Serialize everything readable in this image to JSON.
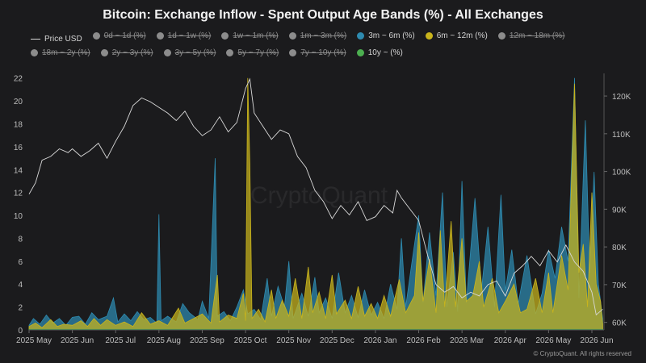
{
  "title": "Bitcoin: Exchange Inflow - Spent Output Age Bands (%) - All Exchanges",
  "legend": [
    {
      "label": "Price USD",
      "color": "#d8d8d8",
      "kind": "line",
      "active": true
    },
    {
      "label": "0d ~ 1d (%)",
      "color": "#8c8c8c",
      "kind": "dot",
      "active": false
    },
    {
      "label": "1d ~ 1w (%)",
      "color": "#8c8c8c",
      "kind": "dot",
      "active": false
    },
    {
      "label": "1w ~ 1m (%)",
      "color": "#8c8c8c",
      "kind": "dot",
      "active": false
    },
    {
      "label": "1m ~ 3m (%)",
      "color": "#8c8c8c",
      "kind": "dot",
      "active": false
    },
    {
      "label": "3m ~ 6m (%)",
      "color": "#2e8bb0",
      "kind": "dot",
      "active": true
    },
    {
      "label": "6m ~ 12m (%)",
      "color": "#c9b41c",
      "kind": "dot",
      "active": true
    },
    {
      "label": "12m ~ 18m (%)",
      "color": "#8c8c8c",
      "kind": "dot",
      "active": false
    },
    {
      "label": "18m ~ 2y (%)",
      "color": "#8c8c8c",
      "kind": "dot",
      "active": false
    },
    {
      "label": "2y ~ 3y (%)",
      "color": "#8c8c8c",
      "kind": "dot",
      "active": false
    },
    {
      "label": "3y ~ 5y (%)",
      "color": "#8c8c8c",
      "kind": "dot",
      "active": false
    },
    {
      "label": "5y ~ 7y (%)",
      "color": "#8c8c8c",
      "kind": "dot",
      "active": false
    },
    {
      "label": "7y ~ 10y (%)",
      "color": "#8c8c8c",
      "kind": "dot",
      "active": false
    },
    {
      "label": "10y ~ (%)",
      "color": "#4caf50",
      "kind": "dot",
      "active": true
    }
  ],
  "watermark": "CryptoQuant",
  "copyright": "© CryptoQuant. All rights reserved",
  "chart_data": {
    "type": "area",
    "title": "Bitcoin: Exchange Inflow - Spent Output Age Bands (%) - All Exchanges",
    "x_tick_labels": [
      "2025 May",
      "2025 Jun",
      "2025 Jul",
      "2025 Aug",
      "2025 Sep",
      "2025 Oct",
      "2025 Nov",
      "2025 Dec",
      "2026 Jan",
      "2026 Feb",
      "2026 Mar",
      "2026 Apr",
      "2026 May",
      "2026 Jun"
    ],
    "x_tick_positions": [
      0,
      1,
      2,
      3,
      4,
      5,
      6,
      7,
      8,
      9,
      10,
      11,
      12,
      13
    ],
    "x_range": [
      0,
      13.0
    ],
    "ylim_left": [
      0,
      22.4
    ],
    "y_ticks_left": [
      0,
      2,
      4,
      6,
      8,
      10,
      12,
      14,
      16,
      18,
      20,
      22
    ],
    "ylim_right": [
      58000,
      126000
    ],
    "y_ticks_right": [
      60000,
      70000,
      80000,
      90000,
      100000,
      110000,
      120000
    ],
    "y_tick_labels_right": [
      "60K",
      "70K",
      "80K",
      "90K",
      "100K",
      "110K",
      "120K"
    ],
    "grid": false,
    "legend_position": "top",
    "series": [
      {
        "name": "Price USD",
        "axis": "right",
        "kind": "line",
        "color": "#d8d8d8",
        "points": [
          [
            0.0,
            94000
          ],
          [
            0.15,
            97000
          ],
          [
            0.3,
            103000
          ],
          [
            0.5,
            104000
          ],
          [
            0.7,
            106000
          ],
          [
            0.9,
            105000
          ],
          [
            1.0,
            106000
          ],
          [
            1.2,
            104000
          ],
          [
            1.4,
            105500
          ],
          [
            1.6,
            107500
          ],
          [
            1.8,
            103500
          ],
          [
            2.0,
            108000
          ],
          [
            2.2,
            112000
          ],
          [
            2.4,
            117500
          ],
          [
            2.6,
            119500
          ],
          [
            2.8,
            118500
          ],
          [
            3.0,
            117000
          ],
          [
            3.2,
            115500
          ],
          [
            3.4,
            113500
          ],
          [
            3.6,
            116000
          ],
          [
            3.8,
            112000
          ],
          [
            4.0,
            109500
          ],
          [
            4.2,
            111000
          ],
          [
            4.4,
            114500
          ],
          [
            4.6,
            110500
          ],
          [
            4.8,
            113000
          ],
          [
            5.0,
            122000
          ],
          [
            5.1,
            124500
          ],
          [
            5.2,
            115500
          ],
          [
            5.4,
            112000
          ],
          [
            5.6,
            108500
          ],
          [
            5.8,
            111000
          ],
          [
            6.0,
            110000
          ],
          [
            6.2,
            104000
          ],
          [
            6.4,
            101000
          ],
          [
            6.6,
            95000
          ],
          [
            6.8,
            92000
          ],
          [
            7.0,
            87500
          ],
          [
            7.2,
            91000
          ],
          [
            7.4,
            88500
          ],
          [
            7.6,
            92000
          ],
          [
            7.8,
            87000
          ],
          [
            8.0,
            88000
          ],
          [
            8.2,
            91000
          ],
          [
            8.4,
            89000
          ],
          [
            8.5,
            95000
          ],
          [
            8.6,
            93000
          ],
          [
            8.8,
            90000
          ],
          [
            9.0,
            87000
          ],
          [
            9.2,
            78000
          ],
          [
            9.4,
            70000
          ],
          [
            9.6,
            68000
          ],
          [
            9.8,
            69500
          ],
          [
            10.0,
            66500
          ],
          [
            10.2,
            68000
          ],
          [
            10.4,
            67000
          ],
          [
            10.6,
            70000
          ],
          [
            10.8,
            71000
          ],
          [
            11.0,
            67000
          ],
          [
            11.2,
            73000
          ],
          [
            11.4,
            75000
          ],
          [
            11.6,
            77500
          ],
          [
            11.8,
            75000
          ],
          [
            12.0,
            79000
          ],
          [
            12.2,
            76000
          ],
          [
            12.4,
            80500
          ],
          [
            12.6,
            76000
          ],
          [
            12.8,
            73500
          ],
          [
            13.0,
            68000
          ],
          [
            13.1,
            62000
          ],
          [
            13.25,
            63500
          ]
        ]
      },
      {
        "name": "3m ~ 6m (%)",
        "axis": "left",
        "kind": "area",
        "color": "#2e8bb0",
        "points": [
          [
            0.0,
            0.4
          ],
          [
            0.1,
            1.0
          ],
          [
            0.25,
            0.5
          ],
          [
            0.4,
            1.3
          ],
          [
            0.55,
            0.6
          ],
          [
            0.7,
            1.0
          ],
          [
            0.85,
            0.4
          ],
          [
            1.0,
            1.1
          ],
          [
            1.15,
            1.2
          ],
          [
            1.3,
            0.5
          ],
          [
            1.45,
            1.5
          ],
          [
            1.6,
            0.9
          ],
          [
            1.8,
            1.2
          ],
          [
            1.95,
            2.8
          ],
          [
            2.05,
            0.7
          ],
          [
            2.2,
            1.4
          ],
          [
            2.35,
            0.8
          ],
          [
            2.5,
            1.6
          ],
          [
            2.65,
            0.9
          ],
          [
            2.8,
            1.1
          ],
          [
            2.95,
            0.6
          ],
          [
            3.0,
            10.1
          ],
          [
            3.05,
            0.8
          ],
          [
            3.2,
            1.2
          ],
          [
            3.4,
            0.7
          ],
          [
            3.55,
            2.3
          ],
          [
            3.7,
            1.5
          ],
          [
            3.9,
            0.9
          ],
          [
            4.0,
            2.5
          ],
          [
            4.15,
            1.0
          ],
          [
            4.3,
            15.0
          ],
          [
            4.35,
            1.2
          ],
          [
            4.5,
            1.6
          ],
          [
            4.65,
            0.8
          ],
          [
            4.8,
            2.0
          ],
          [
            4.95,
            3.5
          ],
          [
            5.05,
            1.4
          ],
          [
            5.2,
            1.8
          ],
          [
            5.35,
            0.9
          ],
          [
            5.5,
            4.5
          ],
          [
            5.6,
            1.2
          ],
          [
            5.75,
            3.8
          ],
          [
            5.9,
            2.0
          ],
          [
            6.0,
            6.0
          ],
          [
            6.1,
            1.0
          ],
          [
            6.3,
            3.2
          ],
          [
            6.45,
            1.2
          ],
          [
            6.6,
            4.6
          ],
          [
            6.7,
            1.5
          ],
          [
            6.85,
            2.8
          ],
          [
            7.0,
            1.0
          ],
          [
            7.15,
            5.0
          ],
          [
            7.3,
            1.5
          ],
          [
            7.45,
            3.0
          ],
          [
            7.6,
            1.1
          ],
          [
            7.75,
            3.5
          ],
          [
            7.9,
            1.3
          ],
          [
            8.05,
            2.4
          ],
          [
            8.2,
            1.0
          ],
          [
            8.35,
            4.0
          ],
          [
            8.5,
            1.8
          ],
          [
            8.6,
            8.0
          ],
          [
            8.7,
            2.0
          ],
          [
            8.85,
            6.1
          ],
          [
            9.0,
            10.0
          ],
          [
            9.1,
            2.4
          ],
          [
            9.25,
            8.5
          ],
          [
            9.4,
            3.0
          ],
          [
            9.55,
            12.0
          ],
          [
            9.65,
            2.0
          ],
          [
            9.8,
            6.8
          ],
          [
            9.9,
            1.6
          ],
          [
            10.0,
            13.0
          ],
          [
            10.1,
            2.4
          ],
          [
            10.3,
            11.5
          ],
          [
            10.45,
            3.5
          ],
          [
            10.6,
            9.0
          ],
          [
            10.75,
            2.0
          ],
          [
            10.9,
            11.8
          ],
          [
            11.0,
            3.4
          ],
          [
            11.15,
            7.0
          ],
          [
            11.3,
            2.3
          ],
          [
            11.5,
            6.5
          ],
          [
            11.7,
            1.4
          ],
          [
            11.85,
            3.2
          ],
          [
            12.0,
            7.0
          ],
          [
            12.15,
            4.5
          ],
          [
            12.3,
            9.0
          ],
          [
            12.45,
            6.0
          ],
          [
            12.6,
            22.0
          ],
          [
            12.7,
            2.8
          ],
          [
            12.85,
            18.3
          ],
          [
            12.95,
            5.0
          ],
          [
            13.05,
            13.8
          ],
          [
            13.15,
            4.0
          ],
          [
            13.25,
            1.0
          ]
        ]
      },
      {
        "name": "6m ~ 12m (%)",
        "axis": "left",
        "kind": "area",
        "color": "#c9b41c",
        "points": [
          [
            0.0,
            0.3
          ],
          [
            0.15,
            0.6
          ],
          [
            0.3,
            0.2
          ],
          [
            0.5,
            0.9
          ],
          [
            0.65,
            0.3
          ],
          [
            0.8,
            0.5
          ],
          [
            1.0,
            0.4
          ],
          [
            1.2,
            0.8
          ],
          [
            1.35,
            0.3
          ],
          [
            1.5,
            1.0
          ],
          [
            1.65,
            0.4
          ],
          [
            1.8,
            0.9
          ],
          [
            2.0,
            0.4
          ],
          [
            2.2,
            0.7
          ],
          [
            2.4,
            0.3
          ],
          [
            2.6,
            1.5
          ],
          [
            2.8,
            0.5
          ],
          [
            3.0,
            0.8
          ],
          [
            3.2,
            0.4
          ],
          [
            3.45,
            1.9
          ],
          [
            3.6,
            0.6
          ],
          [
            3.8,
            1.0
          ],
          [
            4.0,
            1.4
          ],
          [
            4.2,
            0.6
          ],
          [
            4.35,
            4.8
          ],
          [
            4.4,
            0.7
          ],
          [
            4.6,
            1.3
          ],
          [
            4.8,
            1.0
          ],
          [
            4.95,
            3.2
          ],
          [
            5.0,
            0.8
          ],
          [
            5.05,
            22.0
          ],
          [
            5.1,
            14.5
          ],
          [
            5.15,
            1.0
          ],
          [
            5.3,
            1.8
          ],
          [
            5.45,
            0.7
          ],
          [
            5.6,
            3.5
          ],
          [
            5.7,
            1.0
          ],
          [
            5.85,
            2.6
          ],
          [
            6.0,
            1.2
          ],
          [
            6.15,
            4.5
          ],
          [
            6.3,
            1.0
          ],
          [
            6.45,
            5.5
          ],
          [
            6.55,
            1.5
          ],
          [
            6.7,
            3.3
          ],
          [
            6.85,
            1.0
          ],
          [
            7.0,
            4.8
          ],
          [
            7.1,
            1.4
          ],
          [
            7.3,
            2.6
          ],
          [
            7.45,
            1.0
          ],
          [
            7.6,
            3.8
          ],
          [
            7.75,
            1.2
          ],
          [
            7.9,
            2.3
          ],
          [
            8.05,
            1.0
          ],
          [
            8.2,
            3.0
          ],
          [
            8.35,
            1.2
          ],
          [
            8.55,
            4.4
          ],
          [
            8.7,
            1.5
          ],
          [
            8.9,
            3.0
          ],
          [
            9.0,
            8.5
          ],
          [
            9.1,
            2.5
          ],
          [
            9.25,
            6.2
          ],
          [
            9.4,
            1.5
          ],
          [
            9.5,
            8.7
          ],
          [
            9.6,
            2.0
          ],
          [
            9.75,
            9.5
          ],
          [
            9.85,
            2.0
          ],
          [
            10.0,
            8.0
          ],
          [
            10.1,
            2.5
          ],
          [
            10.25,
            3.0
          ],
          [
            10.4,
            6.0
          ],
          [
            10.5,
            2.0
          ],
          [
            10.7,
            4.5
          ],
          [
            10.85,
            1.5
          ],
          [
            11.0,
            2.5
          ],
          [
            11.2,
            4.0
          ],
          [
            11.35,
            1.5
          ],
          [
            11.5,
            1.8
          ],
          [
            11.7,
            4.5
          ],
          [
            11.85,
            1.5
          ],
          [
            12.0,
            5.0
          ],
          [
            12.1,
            1.5
          ],
          [
            12.3,
            6.5
          ],
          [
            12.45,
            3.5
          ],
          [
            12.6,
            21.5
          ],
          [
            12.7,
            5.0
          ],
          [
            12.8,
            7.5
          ],
          [
            12.9,
            2.0
          ],
          [
            13.0,
            12.0
          ],
          [
            13.1,
            4.0
          ],
          [
            13.2,
            2.5
          ],
          [
            13.25,
            0.5
          ]
        ]
      },
      {
        "name": "10y ~ (%)",
        "axis": "left",
        "kind": "area",
        "color": "#4caf50",
        "points": [
          [
            0.0,
            0.05
          ],
          [
            6.0,
            0.05
          ],
          [
            13.25,
            0.05
          ]
        ]
      }
    ]
  }
}
